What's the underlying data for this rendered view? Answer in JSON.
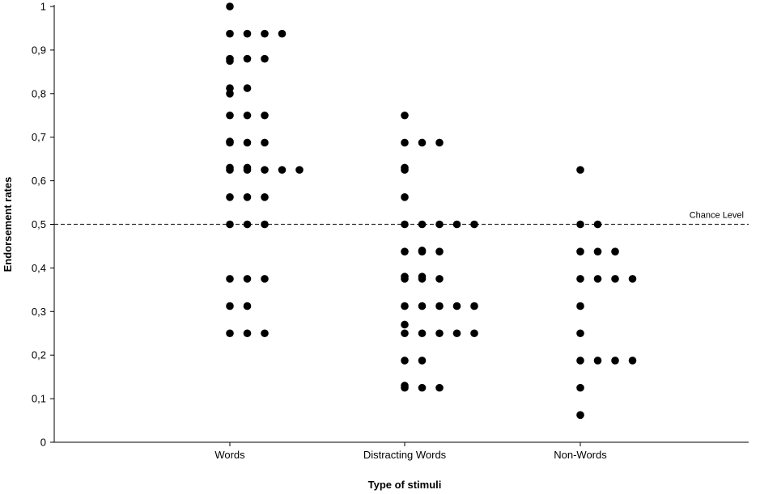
{
  "chart_data": {
    "type": "scatter",
    "title": "",
    "xlabel": "Type of stimuli",
    "ylabel": "Endorsement rates",
    "ylim": [
      0,
      1
    ],
    "yticks": [
      "0",
      "0,1",
      "0,2",
      "0,3",
      "0,4",
      "0,5",
      "0,6",
      "0,7",
      "0,8",
      "0,9",
      "1"
    ],
    "categories": [
      "Words",
      "Distracting Words",
      "Non-Words"
    ],
    "grid": false,
    "reference_line": {
      "y": 0.5,
      "label": "Chance Level",
      "style": "dashed"
    },
    "marker_color": "#000000",
    "series": [
      {
        "category": "Words",
        "points": [
          [
            0,
            1.0
          ],
          [
            0,
            0.9375
          ],
          [
            1,
            0.9375
          ],
          [
            2,
            0.9375
          ],
          [
            3,
            0.9375
          ],
          [
            0,
            0.88
          ],
          [
            0,
            0.875
          ],
          [
            1,
            0.88
          ],
          [
            2,
            0.88
          ],
          [
            0,
            0.8125
          ],
          [
            0,
            0.8
          ],
          [
            1,
            0.8125
          ],
          [
            0,
            0.75
          ],
          [
            1,
            0.75
          ],
          [
            2,
            0.75
          ],
          [
            0,
            0.6875
          ],
          [
            0,
            0.69
          ],
          [
            1,
            0.6875
          ],
          [
            2,
            0.6875
          ],
          [
            0,
            0.625
          ],
          [
            0,
            0.63
          ],
          [
            1,
            0.625
          ],
          [
            1,
            0.63
          ],
          [
            2,
            0.625
          ],
          [
            3,
            0.625
          ],
          [
            4,
            0.625
          ],
          [
            0,
            0.5625
          ],
          [
            1,
            0.5625
          ],
          [
            2,
            0.5625
          ],
          [
            0,
            0.5
          ],
          [
            1,
            0.5
          ],
          [
            2,
            0.5
          ],
          [
            0,
            0.375
          ],
          [
            1,
            0.375
          ],
          [
            2,
            0.375
          ],
          [
            0,
            0.3125
          ],
          [
            1,
            0.3125
          ],
          [
            0,
            0.25
          ],
          [
            1,
            0.25
          ],
          [
            2,
            0.25
          ]
        ]
      },
      {
        "category": "Distracting Words",
        "points": [
          [
            0,
            0.75
          ],
          [
            0,
            0.6875
          ],
          [
            1,
            0.6875
          ],
          [
            2,
            0.6875
          ],
          [
            0,
            0.625
          ],
          [
            0,
            0.63
          ],
          [
            0,
            0.5625
          ],
          [
            0,
            0.5
          ],
          [
            1,
            0.5
          ],
          [
            2,
            0.5
          ],
          [
            3,
            0.5
          ],
          [
            4,
            0.5
          ],
          [
            0,
            0.4375
          ],
          [
            1,
            0.4375
          ],
          [
            1,
            0.44
          ],
          [
            2,
            0.4375
          ],
          [
            0,
            0.375
          ],
          [
            0,
            0.38
          ],
          [
            1,
            0.375
          ],
          [
            1,
            0.38
          ],
          [
            2,
            0.375
          ],
          [
            0,
            0.3125
          ],
          [
            1,
            0.3125
          ],
          [
            2,
            0.3125
          ],
          [
            3,
            0.3125
          ],
          [
            4,
            0.3125
          ],
          [
            0,
            0.27
          ],
          [
            0,
            0.25
          ],
          [
            1,
            0.25
          ],
          [
            2,
            0.25
          ],
          [
            3,
            0.25
          ],
          [
            4,
            0.25
          ],
          [
            0,
            0.1875
          ],
          [
            1,
            0.1875
          ],
          [
            0,
            0.125
          ],
          [
            0,
            0.13
          ],
          [
            1,
            0.125
          ],
          [
            2,
            0.125
          ]
        ]
      },
      {
        "category": "Non-Words",
        "points": [
          [
            0,
            0.625
          ],
          [
            0,
            0.5
          ],
          [
            1,
            0.5
          ],
          [
            0,
            0.4375
          ],
          [
            1,
            0.4375
          ],
          [
            2,
            0.4375
          ],
          [
            0,
            0.375
          ],
          [
            1,
            0.375
          ],
          [
            2,
            0.375
          ],
          [
            3,
            0.375
          ],
          [
            0,
            0.3125
          ],
          [
            0,
            0.25
          ],
          [
            0,
            0.1875
          ],
          [
            1,
            0.1875
          ],
          [
            2,
            0.1875
          ],
          [
            3,
            0.1875
          ],
          [
            0,
            0.125
          ],
          [
            0,
            0.0625
          ]
        ]
      }
    ]
  }
}
